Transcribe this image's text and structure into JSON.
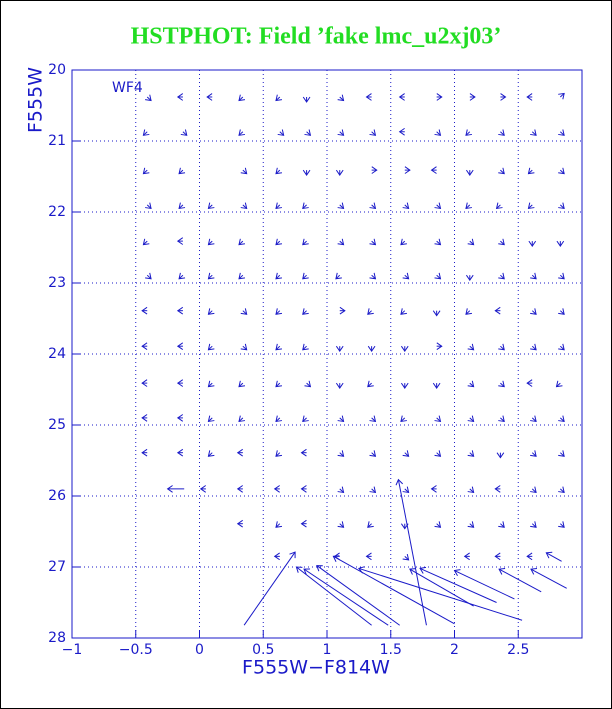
{
  "chart_data": {
    "type": "quiver",
    "title": "HSTPHOT: Field ’fake lmc_u2xj03’",
    "x_label": "F555W−F814W",
    "y_label": "F555W",
    "annotation": "WF4",
    "xlim": [
      -1,
      3
    ],
    "ylim": [
      28,
      20
    ],
    "xticks": [
      {
        "value": -1,
        "label": "−1"
      },
      {
        "value": -0.5,
        "label": "−0.5"
      },
      0,
      0.5,
      1,
      1.5,
      2,
      2.5
    ],
    "yticks": [
      20,
      21,
      22,
      23,
      24,
      25,
      26,
      27,
      28
    ],
    "grid": true,
    "color": "#1a1ac8",
    "title_color": "#22dd22",
    "axis_color": "#1a1ac8",
    "series": [
      {
        "x": [
          -0.41,
          -0.13,
          0.1,
          0.34,
          0.63,
          0.84,
          1.1,
          1.35,
          1.61,
          1.86,
          2.12,
          2.36,
          2.61,
          2.83
        ],
        "y": [
          20.38,
          20.38,
          20.38,
          20.38,
          20.38,
          20.38,
          20.38,
          20.38,
          20.38,
          20.38,
          20.38,
          20.38,
          20.38,
          20.38
        ],
        "u": [
          0.03,
          -0.04,
          -0.04,
          -0.03,
          -0.03,
          0,
          0.03,
          -0.04,
          -0.04,
          0.04,
          0.04,
          0.04,
          -0.04,
          0.03
        ],
        "v": [
          0.05,
          0,
          0,
          0.05,
          0.05,
          0.07,
          0.05,
          0,
          0,
          0,
          0,
          0,
          0,
          -0.05
        ]
      },
      {
        "x": [
          -0.41,
          -0.13,
          0.34,
          0.63,
          0.84,
          1.1,
          1.35,
          1.61,
          1.86,
          2.12,
          2.36,
          2.61,
          2.83
        ],
        "y": [
          20.87,
          20.87,
          20.87,
          20.87,
          20.87,
          20.87,
          20.87,
          20.87,
          20.87,
          20.87,
          20.87,
          20.87,
          20.87
        ],
        "u": [
          -0.03,
          0.03,
          -0.03,
          0.03,
          0.03,
          0.03,
          0.03,
          -0.04,
          0.03,
          -0.03,
          0.03,
          0.03,
          0.03
        ],
        "v": [
          0.05,
          0.05,
          0.05,
          0.05,
          0.05,
          0.05,
          0.05,
          0,
          0.05,
          0.05,
          0.05,
          0.05,
          0.05
        ]
      },
      {
        "x": [
          -0.41,
          -0.13,
          0.34,
          0.63,
          0.84,
          1.1,
          1.35,
          1.61,
          1.86,
          2.12,
          2.36,
          2.61,
          2.83
        ],
        "y": [
          21.41,
          21.41,
          21.41,
          21.41,
          21.41,
          21.41,
          21.41,
          21.41,
          21.41,
          21.41,
          21.41,
          21.41,
          21.41
        ],
        "u": [
          -0.03,
          -0.03,
          0.03,
          -0.03,
          0,
          0,
          0.04,
          0.04,
          -0.04,
          0,
          0.03,
          -0.03,
          0.03
        ],
        "v": [
          0.05,
          0.05,
          0.05,
          0.05,
          0.07,
          0.07,
          0,
          0,
          0,
          0.07,
          0.05,
          0.05,
          0.05
        ]
      },
      {
        "x": [
          -0.41,
          -0.13,
          0.1,
          0.34,
          0.63,
          0.84,
          1.1,
          1.35,
          1.61,
          1.86,
          2.12,
          2.36,
          2.61,
          2.83
        ],
        "y": [
          21.9,
          21.9,
          21.9,
          21.9,
          21.9,
          21.9,
          21.9,
          21.9,
          21.9,
          21.9,
          21.9,
          21.9,
          21.9,
          21.9
        ],
        "u": [
          0.03,
          -0.03,
          -0.03,
          0.03,
          -0.03,
          -0.03,
          0.03,
          0.03,
          0.03,
          0.03,
          -0.03,
          -0.03,
          -0.03,
          0.03
        ],
        "v": [
          0.05,
          0.05,
          0.05,
          0.05,
          0.05,
          0.05,
          0.05,
          0.05,
          0.05,
          0.05,
          0.05,
          0.05,
          0.05,
          0.05
        ]
      },
      {
        "x": [
          -0.41,
          -0.13,
          0.1,
          0.34,
          0.63,
          0.84,
          1.1,
          1.35,
          1.61,
          1.86,
          2.12,
          2.36,
          2.61,
          2.83
        ],
        "y": [
          22.41,
          22.41,
          22.41,
          22.41,
          22.41,
          22.41,
          22.41,
          22.41,
          22.41,
          22.41,
          22.41,
          22.41,
          22.41,
          22.41
        ],
        "u": [
          -0.03,
          -0.04,
          -0.03,
          -0.03,
          -0.03,
          -0.03,
          0.03,
          0.03,
          -0.03,
          0.03,
          0.03,
          0.03,
          0,
          0
        ],
        "v": [
          0.05,
          0,
          0.05,
          0.05,
          0.05,
          0.05,
          0.05,
          0.05,
          0.05,
          0.05,
          0.05,
          0.05,
          0.07,
          0.07
        ]
      },
      {
        "x": [
          -0.41,
          -0.13,
          0.1,
          0.34,
          0.63,
          0.84,
          1.1,
          1.35,
          1.61,
          1.86,
          2.12,
          2.36,
          2.61,
          2.83
        ],
        "y": [
          22.89,
          22.89,
          22.89,
          22.89,
          22.89,
          22.89,
          22.89,
          22.89,
          22.89,
          22.89,
          22.89,
          22.89,
          22.89,
          22.89
        ],
        "u": [
          0.03,
          -0.03,
          -0.03,
          -0.03,
          -0.03,
          -0.03,
          -0.03,
          0.03,
          0.03,
          0.03,
          0,
          0.03,
          0.03,
          0.03
        ],
        "v": [
          0.05,
          0.05,
          0.05,
          0.05,
          0.05,
          0.05,
          0.05,
          0.05,
          0.05,
          0.05,
          0.07,
          0.05,
          0.05,
          0.05
        ]
      },
      {
        "x": [
          -0.41,
          -0.13,
          0.1,
          0.34,
          0.63,
          0.84,
          1.1,
          1.35,
          1.61,
          1.86,
          2.12,
          2.36,
          2.61,
          2.83
        ],
        "y": [
          23.39,
          23.39,
          23.39,
          23.39,
          23.39,
          23.39,
          23.39,
          23.39,
          23.39,
          23.39,
          23.39,
          23.39,
          23.39,
          23.39
        ],
        "u": [
          -0.04,
          -0.04,
          -0.03,
          0.03,
          -0.03,
          -0.03,
          0.04,
          -0.03,
          -0.03,
          0,
          -0.03,
          -0.04,
          0.03,
          0.03
        ],
        "v": [
          0,
          0,
          0.05,
          0.05,
          0.05,
          0.05,
          0,
          0.05,
          0.05,
          0.07,
          0.05,
          0,
          0.05,
          0.05
        ]
      },
      {
        "x": [
          -0.41,
          -0.13,
          0.1,
          0.34,
          0.63,
          0.84,
          1.1,
          1.35,
          1.61,
          1.86,
          2.12,
          2.36,
          2.61,
          2.83
        ],
        "y": [
          23.89,
          23.89,
          23.89,
          23.89,
          23.89,
          23.89,
          23.89,
          23.89,
          23.89,
          23.89,
          23.89,
          23.89,
          23.89,
          23.89
        ],
        "u": [
          -0.04,
          -0.04,
          -0.03,
          0.03,
          -0.03,
          -0.03,
          0,
          0,
          0,
          0.04,
          0.03,
          0.03,
          0.03,
          0.03
        ],
        "v": [
          0,
          0,
          0.05,
          0.05,
          0.05,
          0.05,
          0.07,
          0.07,
          0.07,
          0,
          0.05,
          0.05,
          0.05,
          0.05
        ]
      },
      {
        "x": [
          -0.41,
          -0.13,
          0.1,
          0.34,
          0.63,
          0.84,
          1.1,
          1.35,
          1.61,
          1.86,
          2.12,
          2.36,
          2.61,
          2.83
        ],
        "y": [
          24.41,
          24.41,
          24.41,
          24.41,
          24.41,
          24.41,
          24.41,
          24.41,
          24.41,
          24.41,
          24.41,
          24.41,
          24.41,
          24.41
        ],
        "u": [
          -0.04,
          -0.04,
          -0.03,
          -0.03,
          -0.03,
          0.03,
          0,
          -0.03,
          0,
          0,
          0.03,
          0.03,
          -0.04,
          -0.03
        ],
        "v": [
          0,
          0,
          0.05,
          0.05,
          0.05,
          0.05,
          0.07,
          0.05,
          0.07,
          0.07,
          0.05,
          0.05,
          0,
          0.05
        ]
      },
      {
        "x": [
          -0.41,
          -0.13,
          0.1,
          0.34,
          0.63,
          0.84,
          1.1,
          1.35,
          1.61,
          1.86,
          2.12,
          2.36,
          2.61,
          2.83
        ],
        "y": [
          24.9,
          24.9,
          24.9,
          24.9,
          24.9,
          24.9,
          24.9,
          24.9,
          24.9,
          24.9,
          24.9,
          24.9,
          24.9,
          24.9
        ],
        "u": [
          -0.04,
          -0.04,
          -0.03,
          -0.03,
          -0.03,
          -0.03,
          0.03,
          0.03,
          -0.03,
          0.03,
          0.03,
          0.03,
          0.03,
          0.03
        ],
        "v": [
          0,
          0,
          0.05,
          0.05,
          0.05,
          0.05,
          0.05,
          0.05,
          0.05,
          0.05,
          0.05,
          0.05,
          0.05,
          0.05
        ]
      },
      {
        "x": [
          -0.41,
          -0.13,
          0.1,
          0.34,
          0.63,
          0.84,
          1.1,
          1.35,
          1.61,
          1.86,
          2.12,
          2.36,
          2.61,
          2.83
        ],
        "y": [
          25.39,
          25.39,
          25.39,
          25.39,
          25.39,
          25.39,
          25.39,
          25.39,
          25.39,
          25.39,
          25.39,
          25.39,
          25.39,
          25.39
        ],
        "u": [
          -0.04,
          -0.04,
          -0.03,
          -0.04,
          -0.03,
          -0.04,
          0.03,
          0.03,
          0.03,
          0.03,
          0.03,
          0,
          0.03,
          0.03
        ],
        "v": [
          0,
          0,
          0.05,
          0,
          0.05,
          0,
          0.05,
          0.05,
          0.05,
          0.05,
          0.05,
          0.07,
          0.05,
          0.05
        ]
      },
      {
        "x": [
          -0.12,
          0.05,
          0.34,
          0.63,
          0.84,
          1.1,
          1.35,
          1.61,
          1.86,
          2.12,
          2.36,
          2.61,
          2.83
        ],
        "y": [
          25.9,
          25.9,
          25.9,
          25.9,
          25.9,
          25.9,
          25.9,
          25.9,
          25.9,
          25.9,
          25.9,
          25.9,
          25.9
        ],
        "u": [
          -0.13,
          -0.04,
          -0.04,
          -0.04,
          -0.04,
          0.03,
          0.03,
          0.03,
          -0.04,
          0.03,
          -0.04,
          0.03,
          0.03
        ],
        "v": [
          0,
          0,
          0,
          0,
          0,
          0.05,
          0.05,
          0.05,
          0,
          0.05,
          0,
          0.05,
          0.05
        ]
      },
      {
        "x": [
          0.34,
          0.63,
          0.84,
          1.1,
          1.35,
          1.61,
          1.86,
          2.12,
          2.36,
          2.61,
          2.83
        ],
        "y": [
          26.39,
          26.39,
          26.39,
          26.39,
          26.39,
          26.39,
          26.39,
          26.39,
          26.39,
          26.39,
          26.39
        ],
        "u": [
          -0.04,
          -0.03,
          -0.04,
          0.03,
          -0.03,
          0,
          0.03,
          0.03,
          0.03,
          0.03,
          0.03
        ],
        "v": [
          0,
          0.05,
          0,
          0.05,
          0.05,
          0.07,
          0.05,
          0.05,
          0.05,
          0.05,
          0.05
        ]
      },
      {
        "x": [
          0.63,
          1.1,
          1.35,
          1.61,
          2.12,
          2.36,
          2.61
        ],
        "y": [
          26.85,
          26.85,
          26.85,
          26.85,
          26.85,
          26.85,
          26.85
        ],
        "u": [
          -0.04,
          -0.04,
          -0.04,
          0.03,
          -0.04,
          -0.04,
          -0.04
        ],
        "v": [
          0,
          0,
          0,
          0.05,
          0,
          0,
          0
        ]
      },
      {
        "x": [
          0.35,
          1.35,
          1.48,
          1.57,
          1.78,
          2.0,
          2.53,
          2.15,
          2.33,
          2.47,
          2.68,
          2.88,
          2.84
        ],
        "y": [
          27.82,
          27.82,
          27.82,
          27.82,
          27.82,
          27.8,
          27.75,
          27.55,
          27.5,
          27.45,
          27.35,
          27.3,
          26.92
        ],
        "u": [
          0.4,
          -0.59,
          -0.66,
          -0.65,
          -0.22,
          -0.95,
          -1.28,
          -0.5,
          -0.6,
          -0.47,
          -0.33,
          -0.28,
          -0.12
        ],
        "v": [
          -1.03,
          -0.82,
          -0.79,
          -0.84,
          -2.05,
          -0.95,
          -0.73,
          -0.52,
          -0.48,
          -0.4,
          -0.32,
          -0.27,
          -0.12
        ]
      }
    ]
  }
}
